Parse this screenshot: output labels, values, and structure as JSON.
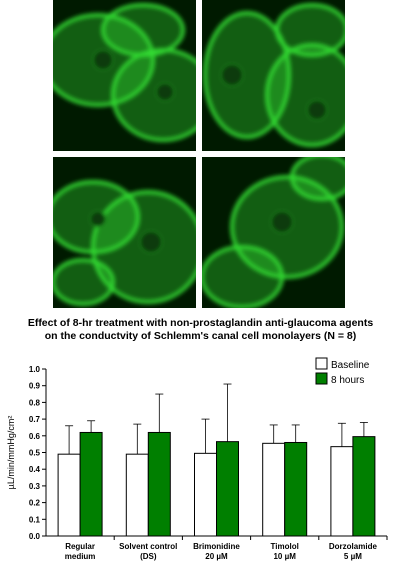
{
  "micrographs": [
    {
      "name": "micrograph-top-left",
      "label": ""
    },
    {
      "name": "micrograph-top-right",
      "label": ""
    },
    {
      "name": "micrograph-bottom-left",
      "label": ""
    },
    {
      "name": "micrograph-bottom-right",
      "label": ""
    }
  ],
  "colors": {
    "micrograph_bg": "#001a00",
    "micrograph_stain": "#33dd33",
    "baseline_fill": "#ffffff",
    "eight_hours_fill": "#007f00",
    "axis": "#000000"
  },
  "chart_data": {
    "type": "bar",
    "title_line1": "Effect of 8-hr treatment with non-prostaglandin anti-glaucoma agents",
    "title_line2": "on the conductvity of Schlemm's canal cell monolayers (N = 8)",
    "ylabel": "µL/min/mmHg/cm²",
    "ylim": [
      0,
      1.0
    ],
    "yticks": [
      "0.0",
      "0.1",
      "0.2",
      "0.3",
      "0.4",
      "0.5",
      "0.6",
      "0.7",
      "0.8",
      "0.9",
      "1.0"
    ],
    "categories": [
      [
        "Regular",
        "medium"
      ],
      [
        "Solvent control",
        "(DS)"
      ],
      [
        "Brimonidine",
        "20 µM"
      ],
      [
        "Timolol",
        "10 µM"
      ],
      [
        "Dorzolamide",
        "5 µM"
      ]
    ],
    "series": [
      {
        "name": "Baseline",
        "values": [
          0.49,
          0.49,
          0.495,
          0.555,
          0.535
        ],
        "errors": [
          0.17,
          0.18,
          0.205,
          0.11,
          0.14
        ]
      },
      {
        "name": "8 hours",
        "values": [
          0.62,
          0.62,
          0.565,
          0.56,
          0.595
        ],
        "errors": [
          0.07,
          0.23,
          0.345,
          0.105,
          0.085
        ]
      }
    ],
    "legend_position": "top-right",
    "grid": false
  }
}
